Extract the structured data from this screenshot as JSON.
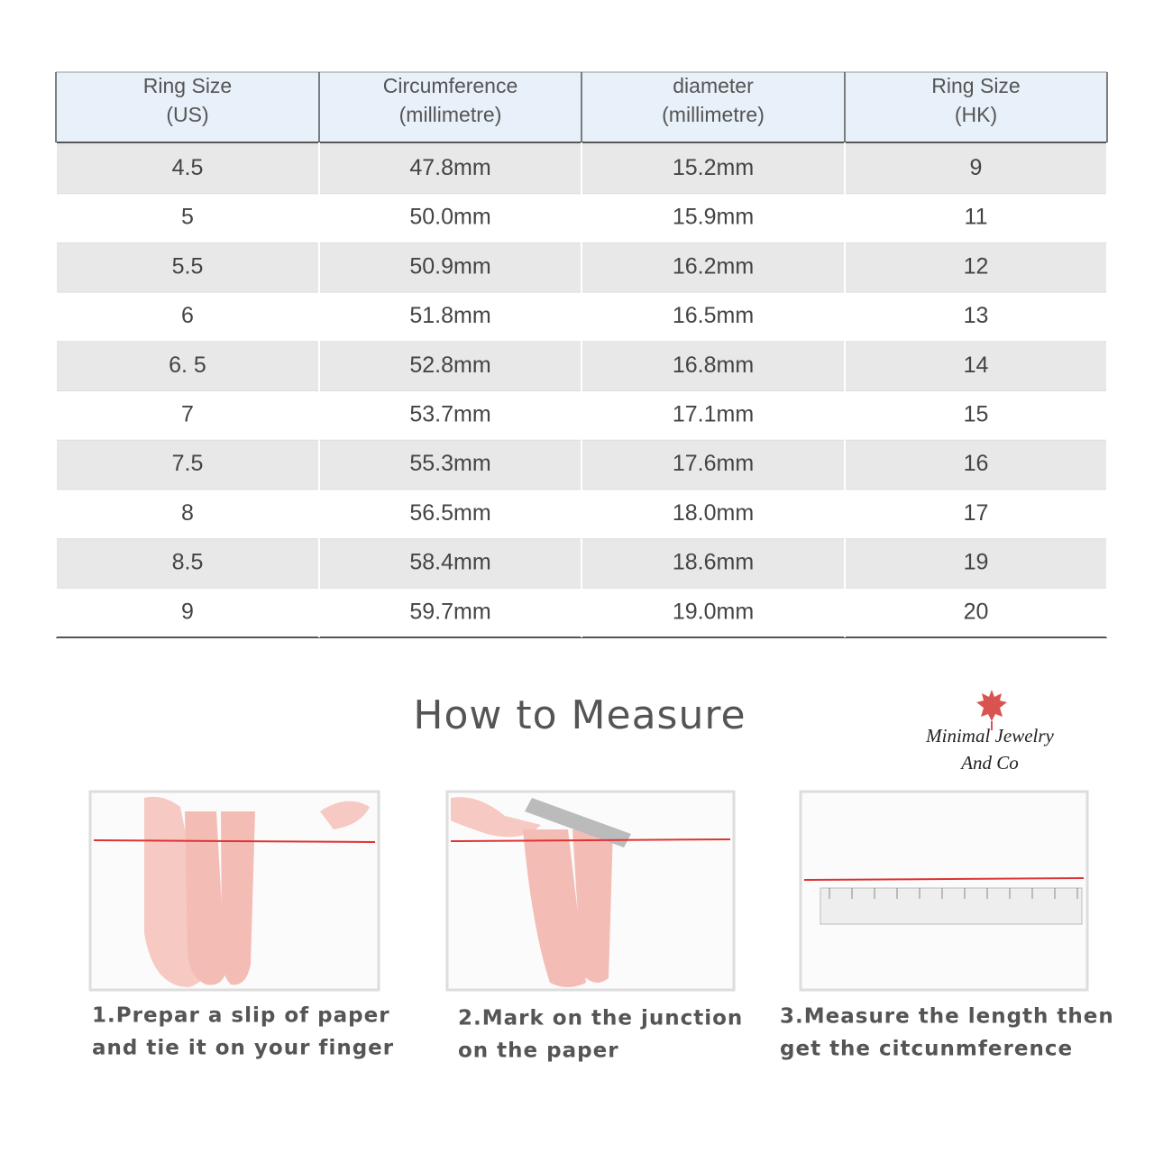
{
  "table": {
    "header": [
      [
        "Ring Size",
        "(US)"
      ],
      [
        "Circumference",
        "(millimetre)"
      ],
      [
        "diameter",
        "(millimetre)"
      ],
      [
        "Ring Size",
        "(HK)"
      ]
    ],
    "rows": [
      [
        "4.5",
        "47.8mm",
        "15.2mm",
        "9"
      ],
      [
        "5",
        "50.0mm",
        "15.9mm",
        "11"
      ],
      [
        "5.5",
        "50.9mm",
        "16.2mm",
        "12"
      ],
      [
        "6",
        "51.8mm",
        "16.5mm",
        "13"
      ],
      [
        "6. 5",
        "52.8mm",
        "16.8mm",
        "14"
      ],
      [
        "7",
        "53.7mm",
        "17.1mm",
        "15"
      ],
      [
        "7.5",
        "55.3mm",
        "17.6mm",
        "16"
      ],
      [
        "8",
        "56.5mm",
        "18.0mm",
        "17"
      ],
      [
        "8.5",
        "58.4mm",
        "18.6mm",
        "19"
      ],
      [
        "9",
        "59.7mm",
        "19.0mm",
        "20"
      ]
    ]
  },
  "section": {
    "title": "How to Measure"
  },
  "logo": {
    "lines": [
      "Minimal Jewelry",
      "And Co"
    ]
  },
  "steps": [
    {
      "lines": [
        "1.Prepar a slip of paper",
        "and tie it on your finger"
      ]
    },
    {
      "lines": [
        "2.Mark on the junction",
        "on the paper"
      ]
    },
    {
      "lines": [
        "3.Measure the length then",
        "get the citcunmference"
      ]
    }
  ]
}
